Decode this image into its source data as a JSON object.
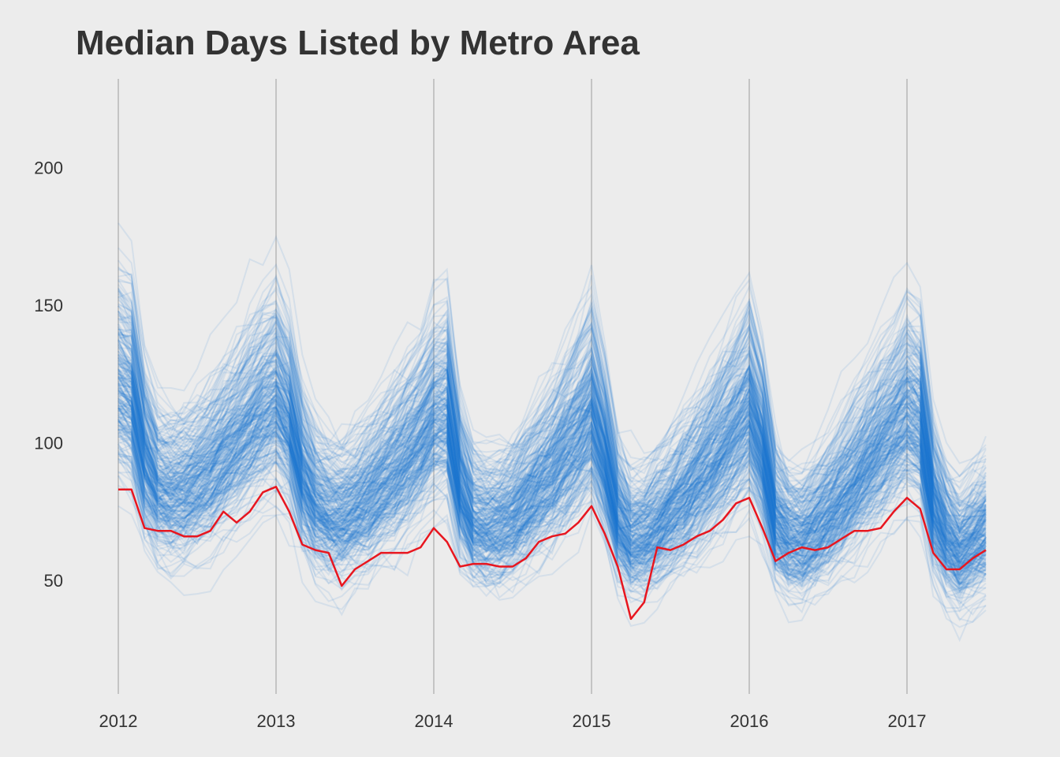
{
  "chart_data": {
    "type": "line",
    "title": "Median Days Listed by Metro Area",
    "xlabel": "",
    "ylabel": "",
    "x_ticks": [
      "2012",
      "2013",
      "2014",
      "2015",
      "2016",
      "2017"
    ],
    "y_ticks": [
      50,
      100,
      150,
      200
    ],
    "xlim": [
      "2012-01",
      "2017-07"
    ],
    "ylim": [
      10,
      228
    ],
    "grid": "vertical lines at year ticks",
    "legend": "none",
    "colors": {
      "background": "#ececec",
      "metro_lines": "#1f77d0",
      "highlight": "#e8161f",
      "gridline": "#c4c4c4"
    },
    "highlight_series": {
      "x": [
        "2012-01",
        "2012-02",
        "2012-03",
        "2012-04",
        "2012-05",
        "2012-06",
        "2012-07",
        "2012-08",
        "2012-09",
        "2012-10",
        "2012-11",
        "2012-12",
        "2013-01",
        "2013-02",
        "2013-03",
        "2013-04",
        "2013-05",
        "2013-06",
        "2013-07",
        "2013-08",
        "2013-09",
        "2013-10",
        "2013-11",
        "2013-12",
        "2014-01",
        "2014-02",
        "2014-03",
        "2014-04",
        "2014-05",
        "2014-06",
        "2014-07",
        "2014-08",
        "2014-09",
        "2014-10",
        "2014-11",
        "2014-12",
        "2015-01",
        "2015-02",
        "2015-03",
        "2015-04",
        "2015-05",
        "2015-06",
        "2015-07",
        "2015-08",
        "2015-09",
        "2015-10",
        "2015-11",
        "2015-12",
        "2016-01",
        "2016-02",
        "2016-03",
        "2016-04",
        "2016-05",
        "2016-06",
        "2016-07",
        "2016-08",
        "2016-09",
        "2016-10",
        "2016-11",
        "2016-12",
        "2017-01",
        "2017-02",
        "2017-03",
        "2017-04",
        "2017-05",
        "2017-06",
        "2017-07"
      ],
      "values": [
        83,
        83,
        69,
        68,
        68,
        66,
        66,
        68,
        75,
        71,
        75,
        82,
        84,
        75,
        63,
        61,
        60,
        48,
        54,
        57,
        60,
        60,
        60,
        62,
        69,
        64,
        55,
        56,
        56,
        55,
        55,
        58,
        64,
        66,
        67,
        71,
        77,
        67,
        55,
        36,
        42,
        62,
        61,
        63,
        66,
        68,
        72,
        78,
        80,
        69,
        57,
        60,
        62,
        61,
        62,
        65,
        68,
        68,
        69,
        75,
        80,
        76,
        60,
        54,
        54,
        58,
        61
      ]
    },
    "metro_series_summary": {
      "count_approx": 280,
      "x": [
        "2012-01",
        "2012-02",
        "2012-03",
        "2012-04",
        "2012-05",
        "2012-06",
        "2012-07",
        "2012-08",
        "2012-09",
        "2012-10",
        "2012-11",
        "2012-12",
        "2013-01",
        "2013-02",
        "2013-03",
        "2013-04",
        "2013-05",
        "2013-06",
        "2013-07",
        "2013-08",
        "2013-09",
        "2013-10",
        "2013-11",
        "2013-12",
        "2014-01",
        "2014-02",
        "2014-03",
        "2014-04",
        "2014-05",
        "2014-06",
        "2014-07",
        "2014-08",
        "2014-09",
        "2014-10",
        "2014-11",
        "2014-12",
        "2015-01",
        "2015-02",
        "2015-03",
        "2015-04",
        "2015-05",
        "2015-06",
        "2015-07",
        "2015-08",
        "2015-09",
        "2015-10",
        "2015-11",
        "2015-12",
        "2016-01",
        "2016-02",
        "2016-03",
        "2016-04",
        "2016-05",
        "2016-06",
        "2016-07",
        "2016-08",
        "2016-09",
        "2016-10",
        "2016-11",
        "2016-12",
        "2017-01",
        "2017-02",
        "2017-03",
        "2017-04",
        "2017-05",
        "2017-06",
        "2017-07"
      ],
      "typical_values": [
        122,
        118,
        95,
        84,
        82,
        83,
        86,
        90,
        96,
        101,
        107,
        113,
        117,
        108,
        88,
        78,
        74,
        73,
        76,
        80,
        85,
        90,
        96,
        102,
        110,
        112,
        84,
        72,
        70,
        71,
        74,
        79,
        85,
        90,
        97,
        104,
        112,
        95,
        73,
        65,
        66,
        70,
        75,
        80,
        86,
        92,
        99,
        106,
        113,
        98,
        72,
        66,
        65,
        69,
        74,
        80,
        86,
        93,
        100,
        106,
        112,
        108,
        78,
        66,
        60,
        64,
        68
      ]
    }
  }
}
